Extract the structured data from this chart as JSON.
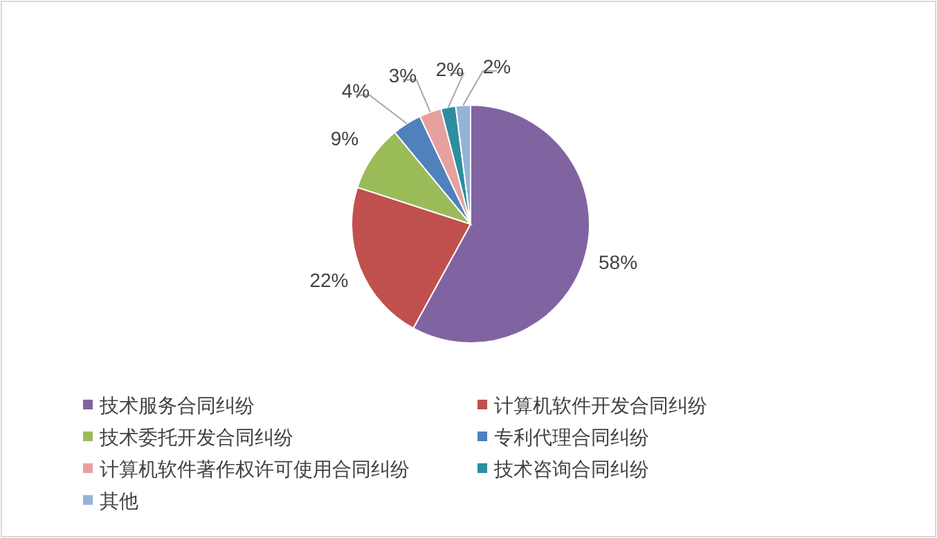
{
  "chart_data": {
    "type": "pie",
    "categories": [
      "技术服务合同纠纷",
      "计算机软件开发合同纠纷",
      "技术委托开发合同纠纷",
      "专利代理合同纠纷",
      "计算机软件著作权许可使用合同纠纷",
      "技术咨询合同纠纷",
      "其他"
    ],
    "values": [
      58,
      22,
      9,
      4,
      3,
      2,
      2
    ],
    "colors": [
      "#8064a2",
      "#c0504d",
      "#9bbb59",
      "#4f81bd",
      "#e6a19f",
      "#2c8ea0",
      "#95b3d7"
    ],
    "value_labels": [
      "58%",
      "22%",
      "9%",
      "4%",
      "3%",
      "2%",
      "2%"
    ],
    "legend": "bottom"
  }
}
